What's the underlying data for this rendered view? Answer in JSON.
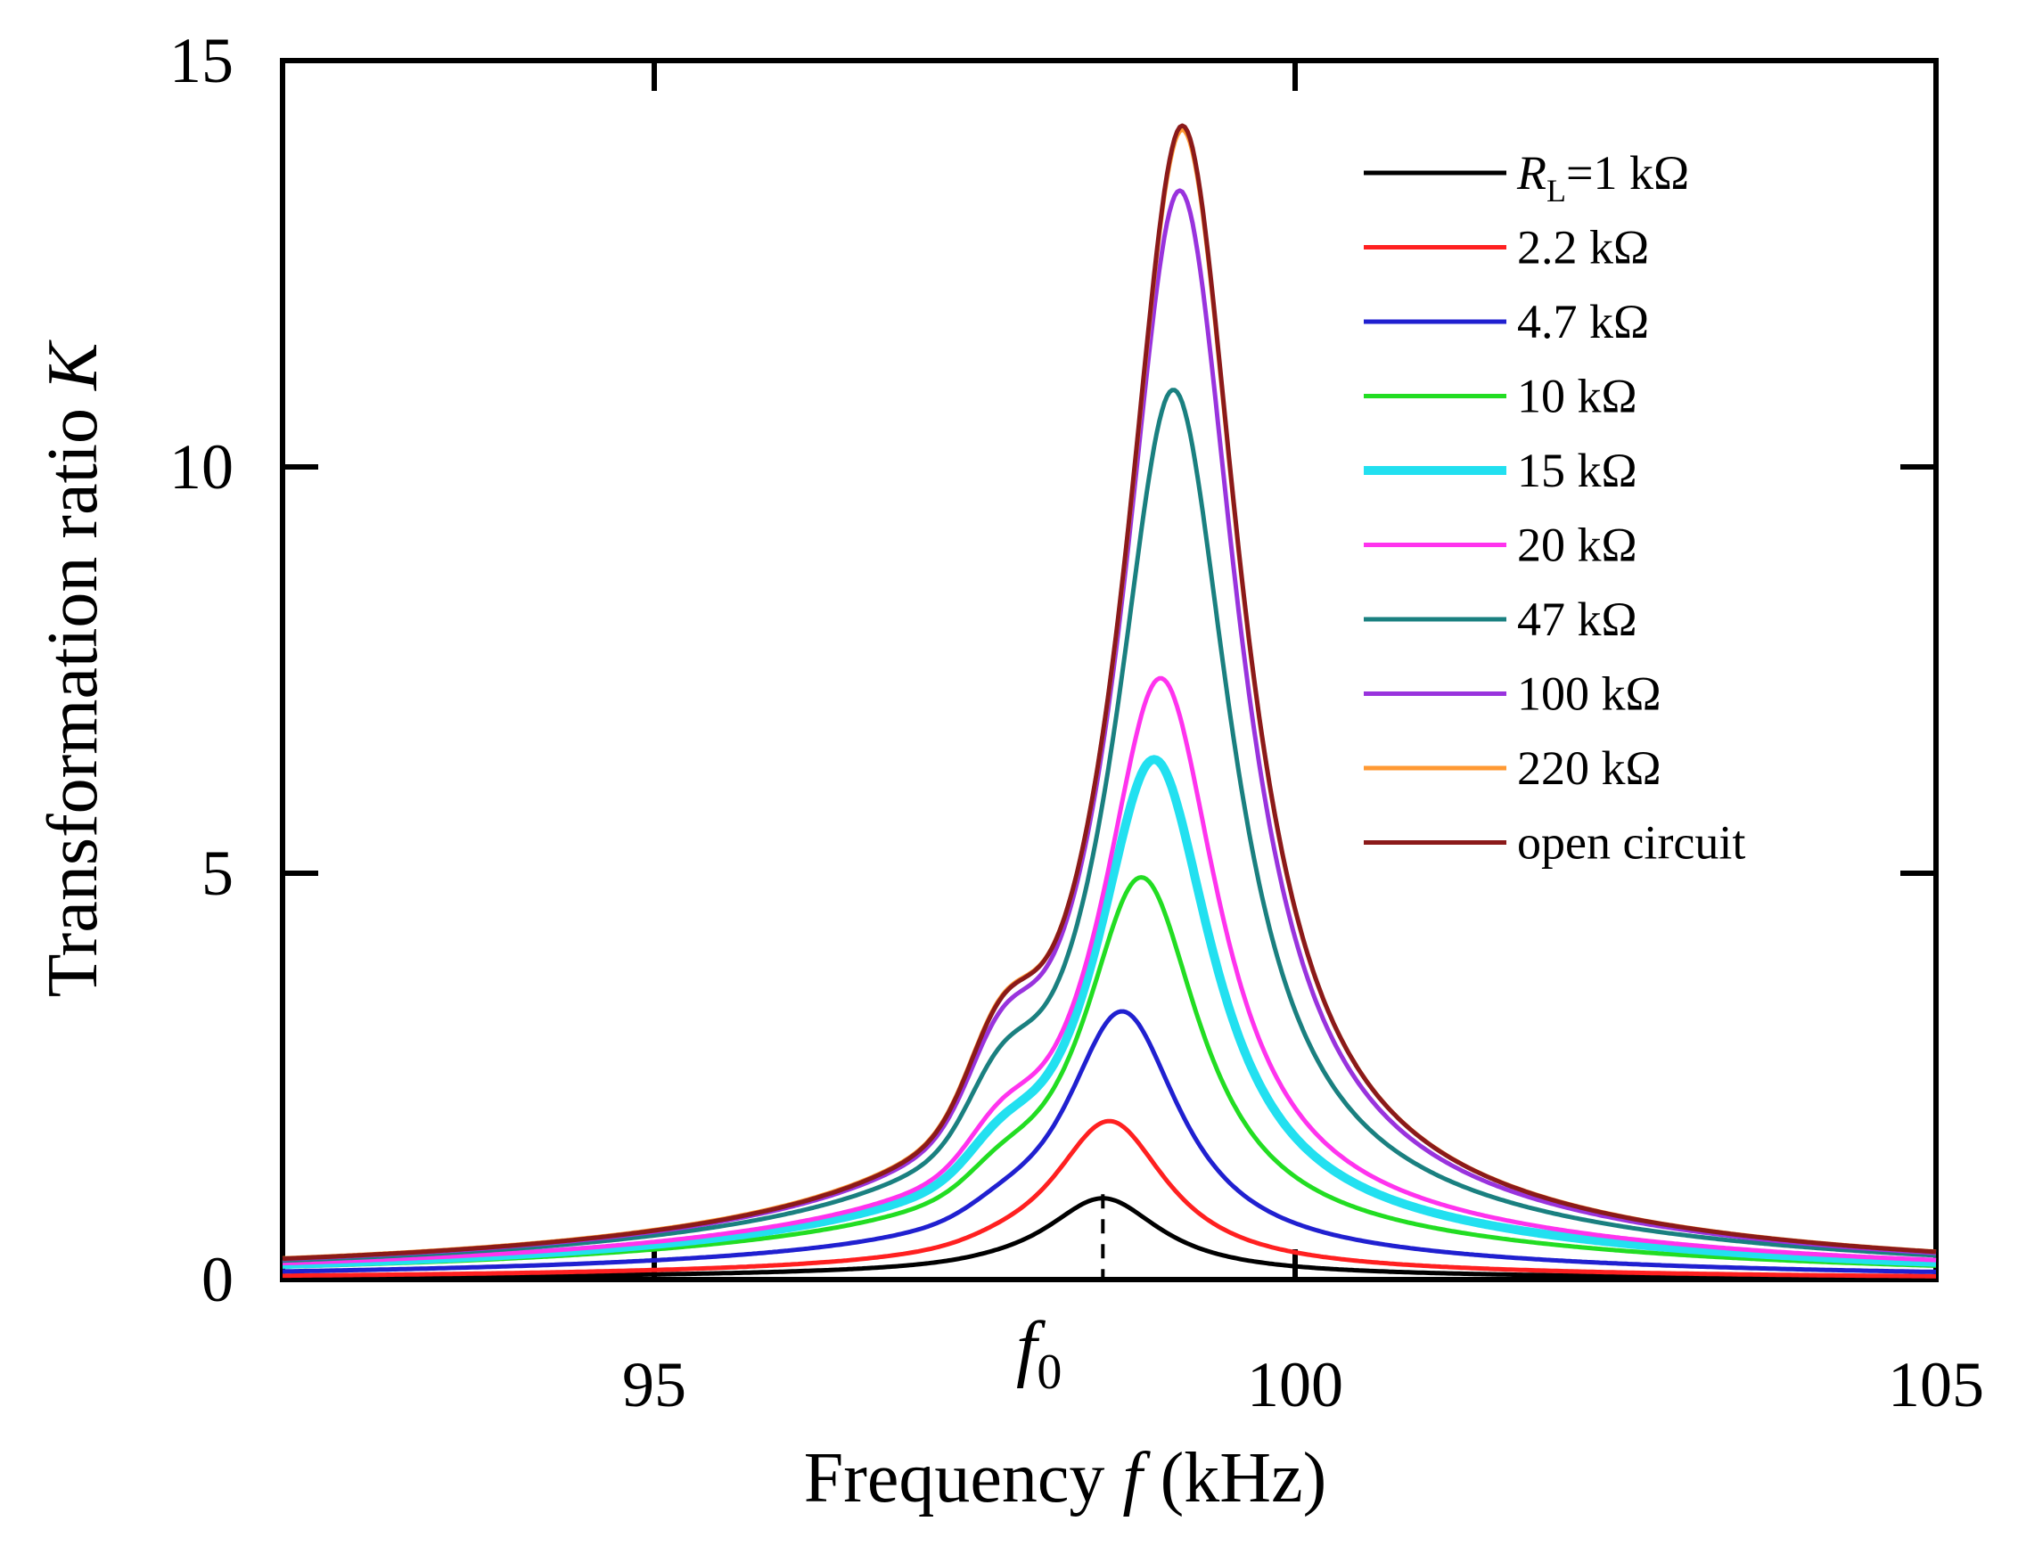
{
  "chart_data": {
    "type": "line",
    "xlabel": {
      "prefix": "Frequency ",
      "var": "f",
      "suffix": " (kHz)"
    },
    "ylabel": {
      "prefix": "Transformation ratio ",
      "var": "K"
    },
    "xlim": [
      92.1,
      105
    ],
    "ylim": [
      0,
      15
    ],
    "x_ticks": [
      95,
      100,
      105
    ],
    "y_ticks": [
      0,
      5,
      10,
      15
    ],
    "f0_marker": {
      "x": 98.5,
      "label": "f",
      "subscript": "0"
    },
    "legend_title_part": {
      "var": "R",
      "sub": "L",
      "rest": "=1 kΩ"
    },
    "series": [
      {
        "name": "RL=1 kΩ",
        "label": "=1 kΩ",
        "color": "#000000",
        "peak_x": 98.5,
        "peak_y": 1.0,
        "base_left": 0.08,
        "base_right": 0.06,
        "shoulder": 0.12
      },
      {
        "name": "2.2 kΩ",
        "label": "2.2 kΩ",
        "color": "#ff2020",
        "peak_x": 98.55,
        "peak_y": 1.95,
        "base_left": 0.15,
        "base_right": 0.12,
        "shoulder": 0.25
      },
      {
        "name": "4.7 kΩ",
        "label": "4.7 kΩ",
        "color": "#2020d0",
        "peak_x": 98.65,
        "peak_y": 3.3,
        "base_left": 0.35,
        "base_right": 0.3,
        "shoulder": 0.45
      },
      {
        "name": "10 kΩ",
        "label": "10 kΩ",
        "color": "#22dd22",
        "peak_x": 98.8,
        "peak_y": 4.95,
        "base_left": 0.6,
        "base_right": 0.55,
        "shoulder": 0.6
      },
      {
        "name": "15 kΩ",
        "label": "15 kΩ",
        "color": "#22e0f0",
        "peak_x": 98.9,
        "peak_y": 6.4,
        "base_left": 0.7,
        "base_right": 0.65,
        "shoulder": 0.7
      },
      {
        "name": "20 kΩ",
        "label": "20 kΩ",
        "color": "#ff33ee",
        "peak_x": 98.95,
        "peak_y": 7.4,
        "base_left": 0.75,
        "base_right": 0.72,
        "shoulder": 0.75
      },
      {
        "name": "47 kΩ",
        "label": "47 kΩ",
        "color": "#1a8080",
        "peak_x": 99.05,
        "peak_y": 10.95,
        "base_left": 0.82,
        "base_right": 0.8,
        "shoulder": 0.8
      },
      {
        "name": "100 kΩ",
        "label": "100  kΩ",
        "color": "#9933dd",
        "peak_x": 99.1,
        "peak_y": 13.4,
        "base_left": 0.85,
        "base_right": 0.82,
        "shoulder": 0.82
      },
      {
        "name": "220 kΩ",
        "label": "220 kΩ",
        "color": "#ff9933",
        "peak_x": 99.12,
        "peak_y": 14.15,
        "base_left": 0.88,
        "base_right": 0.85,
        "shoulder": 0.85
      },
      {
        "name": "open circuit",
        "label": "open circuit",
        "color": "#8b1a1a",
        "peak_x": 99.12,
        "peak_y": 14.2,
        "base_left": 0.86,
        "base_right": 0.84,
        "shoulder": 0.84
      }
    ]
  }
}
